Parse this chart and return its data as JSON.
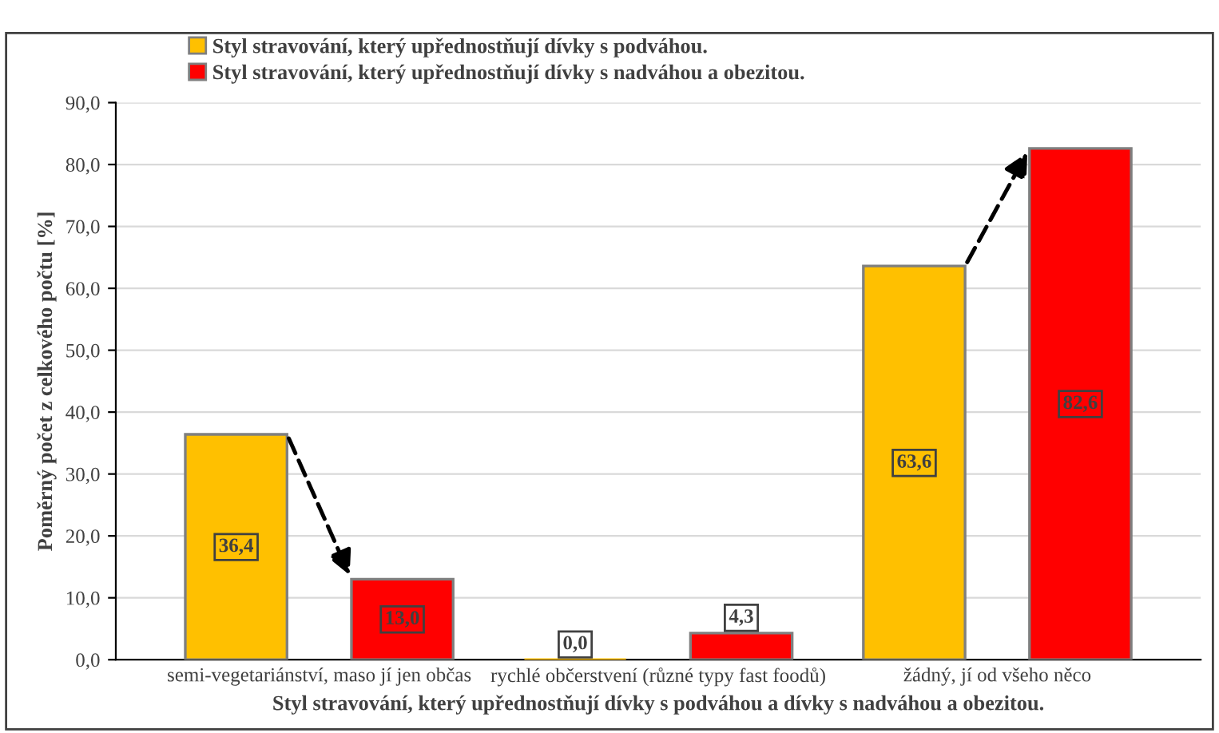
{
  "chart_data": {
    "type": "bar",
    "xlabel": "Styl stravování, který upřednostňují dívky s podváhou a dívky s nadváhou a obezitou.",
    "ylabel": "Poměrný počet z celkového počtu [%]",
    "categories": [
      "semi-vegetariánství, maso jí jen občas",
      "rychlé občerstvení (různé typy fast foodů)",
      "žádný, jí od všeho něco"
    ],
    "series": [
      {
        "name": "Styl stravování, který upřednostňují dívky s podváhou.",
        "color": "#ffc000",
        "values": [
          36.4,
          0.0,
          63.6
        ],
        "value_labels": [
          "36,4",
          "0,0",
          "63,6"
        ]
      },
      {
        "name": "Styl stravování, který upřednostňují dívky s nadváhou a obezitou.",
        "color": "#ff0000",
        "values": [
          13.0,
          4.3,
          82.6
        ],
        "value_labels": [
          "13,0",
          "4,3",
          "82,6"
        ]
      }
    ],
    "ylim": [
      0,
      90
    ],
    "yticks": [
      {
        "value": 0,
        "label": "0,0"
      },
      {
        "value": 10,
        "label": "10,0"
      },
      {
        "value": 20,
        "label": "20,0"
      },
      {
        "value": 30,
        "label": "30,0"
      },
      {
        "value": 40,
        "label": "40,0"
      },
      {
        "value": 50,
        "label": "50,0"
      },
      {
        "value": 60,
        "label": "60,0"
      },
      {
        "value": 70,
        "label": "70,0"
      },
      {
        "value": 80,
        "label": "80,0"
      },
      {
        "value": 90,
        "label": "90,0"
      }
    ],
    "grid": "y",
    "legend": "top left"
  }
}
